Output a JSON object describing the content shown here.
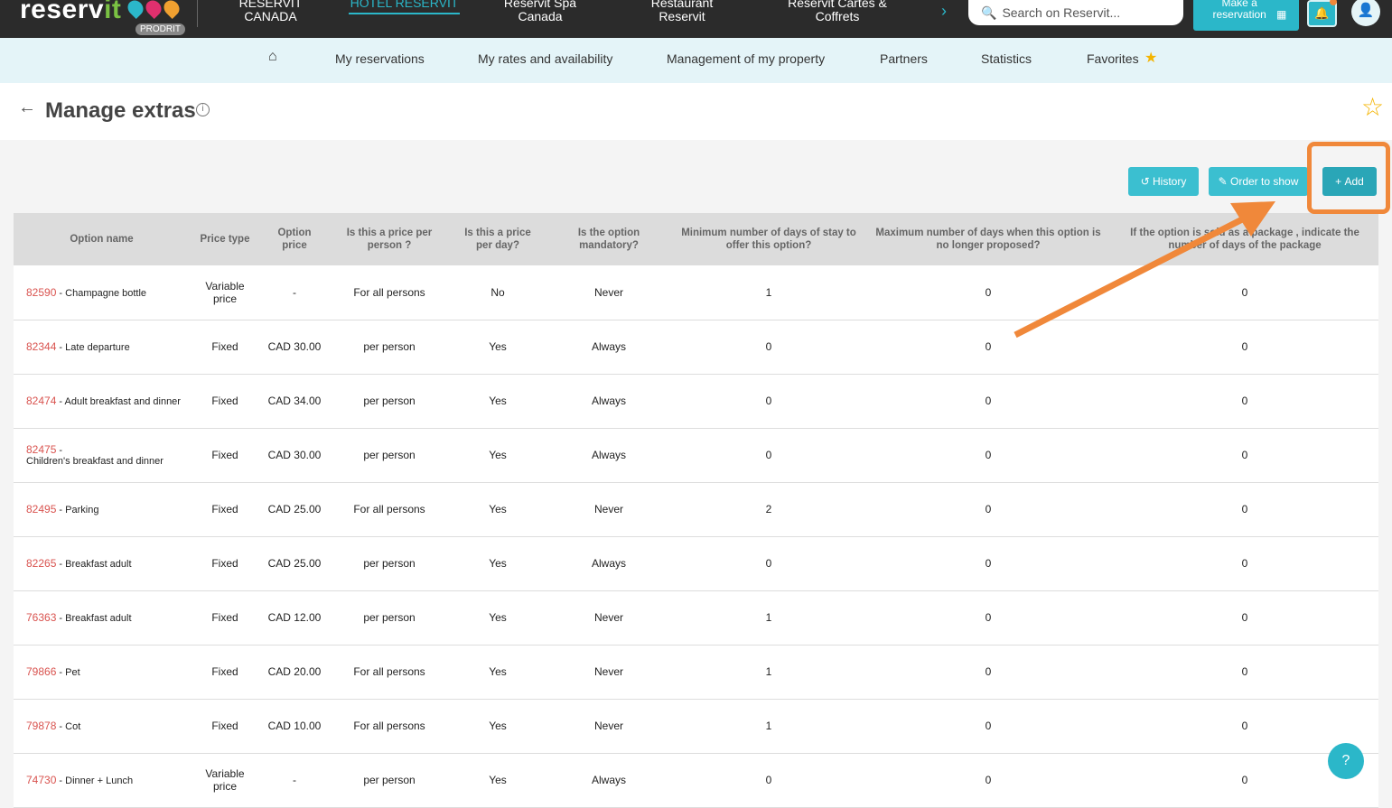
{
  "header": {
    "logo": "reservit",
    "logo_accent": "it",
    "badge": "PRODRIT",
    "nav": [
      {
        "label": "RESERVIT CANADA"
      },
      {
        "label": "HOTEL RESERVIT",
        "active": true
      },
      {
        "label": "Reservit Spa Canada"
      },
      {
        "label": "Restaurant Reservit"
      },
      {
        "label": "Reservit Cartes & Coffrets"
      }
    ],
    "search_placeholder": "Search on Reservit...",
    "make_reservation": "Make a reservation"
  },
  "subnav": {
    "items": [
      "My reservations",
      "My rates and availability",
      "Management of my property",
      "Partners",
      "Statistics",
      "Favorites"
    ]
  },
  "page": {
    "title": "Manage extras"
  },
  "toolbar": {
    "history": "History",
    "order": "Order to show",
    "add": "Add"
  },
  "table": {
    "headers": [
      "Option name",
      "Price type",
      "Option price",
      "Is this a price per person ?",
      "Is this a price per day?",
      "Is the option mandatory?",
      "Minimum number of days of stay to offer this option?",
      "Maximum number of days when this option is no longer proposed?",
      "If the option is sold as a package , indicate the number of days of the package"
    ],
    "rows": [
      [
        "82590",
        "Champagne bottle",
        "Variable price",
        "-",
        "For all persons",
        "No",
        "Never",
        "1",
        "0",
        "0"
      ],
      [
        "82344",
        "Late departure",
        "Fixed",
        "CAD 30.00",
        "per person",
        "Yes",
        "Always",
        "0",
        "0",
        "0"
      ],
      [
        "82474",
        "Adult breakfast and dinner",
        "Fixed",
        "CAD 34.00",
        "per person",
        "Yes",
        "Always",
        "0",
        "0",
        "0"
      ],
      [
        "82475",
        "Children's breakfast and dinner",
        "Fixed",
        "CAD 30.00",
        "per person",
        "Yes",
        "Always",
        "0",
        "0",
        "0"
      ],
      [
        "82495",
        "Parking",
        "Fixed",
        "CAD 25.00",
        "For all persons",
        "Yes",
        "Never",
        "2",
        "0",
        "0"
      ],
      [
        "82265",
        "Breakfast adult",
        "Fixed",
        "CAD 25.00",
        "per person",
        "Yes",
        "Always",
        "0",
        "0",
        "0"
      ],
      [
        "76363",
        "Breakfast adult",
        "Fixed",
        "CAD 12.00",
        "per person",
        "Yes",
        "Never",
        "1",
        "0",
        "0"
      ],
      [
        "79866",
        "Pet",
        "Fixed",
        "CAD 20.00",
        "For all persons",
        "Yes",
        "Never",
        "1",
        "0",
        "0"
      ],
      [
        "79878",
        "Cot",
        "Fixed",
        "CAD 10.00",
        "For all persons",
        "Yes",
        "Never",
        "1",
        "0",
        "0"
      ],
      [
        "74730",
        "Dinner + Lunch",
        "Variable price",
        "-",
        "per person",
        "Yes",
        "Always",
        "0",
        "0",
        "0"
      ]
    ]
  },
  "help": "?",
  "colors": {
    "accent": "#2bb7c9",
    "annotation": "#f0883a",
    "id_red": "#d9534f"
  }
}
